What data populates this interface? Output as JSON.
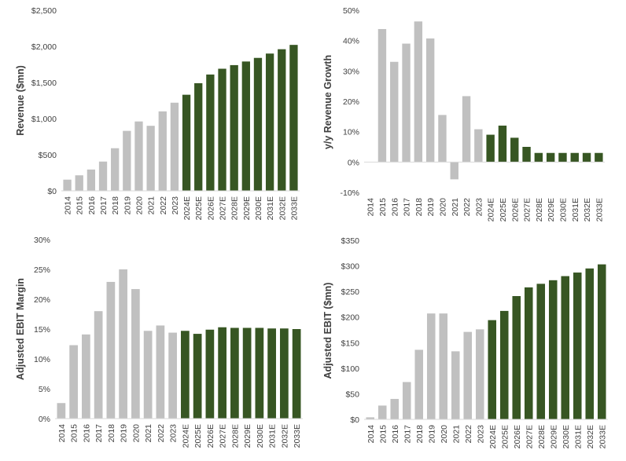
{
  "colors": {
    "historical": "#c0c0c0",
    "forecast": "#375623",
    "axis": "#d9d9d9",
    "text": "#404040"
  },
  "chart_data": [
    {
      "type": "bar",
      "ylabel": "Revenue ($mn)",
      "ylim": [
        0,
        2500
      ],
      "yticks": [
        "$0",
        "$500",
        "$1,000",
        "$1,500",
        "$2,000",
        "$2,500"
      ],
      "categories": [
        "2014",
        "2015",
        "2016",
        "2017",
        "2018",
        "2019",
        "2020",
        "2021",
        "2022",
        "2023",
        "2024E",
        "2025E",
        "2026E",
        "2027E",
        "2028E",
        "2029E",
        "2030E",
        "2031E",
        "2032E",
        "2033E"
      ],
      "series": [
        {
          "values": [
            155,
            215,
            295,
            405,
            590,
            830,
            960,
            900,
            1100,
            1220,
            1330,
            1490,
            1610,
            1690,
            1740,
            1790,
            1840,
            1900,
            1960,
            2020
          ]
        }
      ],
      "forecast_start_index": 10,
      "grid": false
    },
    {
      "type": "bar",
      "ylabel": "y/y Revenue Growth",
      "ylim": [
        -10,
        50
      ],
      "yticks": [
        "-10%",
        "0%",
        "10%",
        "20%",
        "30%",
        "40%",
        "50%"
      ],
      "categories": [
        "2014",
        "2015",
        "2016",
        "2017",
        "2018",
        "2019",
        "2020",
        "2021",
        "2022",
        "2023",
        "2024E",
        "2025E",
        "2026E",
        "2027E",
        "2028E",
        "2029E",
        "2030E",
        "2031E",
        "2032E",
        "2033E"
      ],
      "series": [
        {
          "values": [
            null,
            43.8,
            33.0,
            39.0,
            46.3,
            40.7,
            15.5,
            -5.7,
            21.7,
            10.8,
            9.0,
            12.0,
            8.0,
            5.0,
            3.0,
            3.0,
            3.0,
            3.0,
            3.0,
            3.0
          ]
        }
      ],
      "forecast_start_index": 10,
      "grid": false
    },
    {
      "type": "bar",
      "ylabel": "Adjusted EBIT Margin",
      "ylim": [
        0,
        30
      ],
      "yticks": [
        "0%",
        "5%",
        "10%",
        "15%",
        "20%",
        "25%",
        "30%"
      ],
      "categories": [
        "2014",
        "2015",
        "2016",
        "2017",
        "2018",
        "2019",
        "2020",
        "2021",
        "2022",
        "2023",
        "2024E",
        "2025E",
        "2026E",
        "2027E",
        "2028E",
        "2029E",
        "2030E",
        "2031E",
        "2032E",
        "2033E"
      ],
      "series": [
        {
          "values": [
            2.6,
            12.3,
            14.1,
            18.0,
            22.9,
            25.0,
            21.7,
            14.7,
            15.6,
            14.4,
            14.7,
            14.2,
            14.9,
            15.3,
            15.2,
            15.2,
            15.2,
            15.1,
            15.1,
            15.0
          ]
        }
      ],
      "forecast_start_index": 10,
      "grid": false
    },
    {
      "type": "bar",
      "ylabel": "Adjusted EBIT ($mn)",
      "ylim": [
        0,
        350
      ],
      "yticks": [
        "$0",
        "$50",
        "$100",
        "$150",
        "$200",
        "$250",
        "$300",
        "$350"
      ],
      "categories": [
        "2014",
        "2015",
        "2016",
        "2017",
        "2018",
        "2019",
        "2020",
        "2021",
        "2022",
        "2023",
        "2024E",
        "2025E",
        "2026E",
        "2027E",
        "2028E",
        "2029E",
        "2030E",
        "2031E",
        "2032E",
        "2033E"
      ],
      "series": [
        {
          "values": [
            4,
            27,
            40,
            73,
            136,
            207,
            207,
            133,
            171,
            176,
            194,
            212,
            241,
            258,
            265,
            272,
            280,
            287,
            295,
            303
          ]
        }
      ],
      "forecast_start_index": 10,
      "grid": false
    }
  ]
}
